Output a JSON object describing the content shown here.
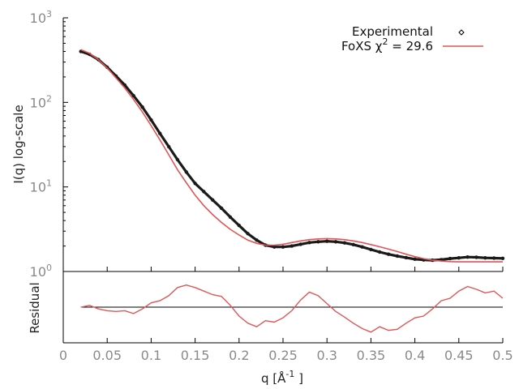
{
  "chart_data": [
    {
      "type": "scatter",
      "ylabel": "I(q) log-scale",
      "yscale": "log",
      "xlim": [
        0,
        0.5
      ],
      "ylim": [
        1,
        1000
      ],
      "y_tick_labels": [
        {
          "base": "10",
          "exp": "0"
        },
        {
          "base": "10",
          "exp": "1"
        },
        {
          "base": "10",
          "exp": "2"
        },
        {
          "base": "10",
          "exp": "3"
        }
      ],
      "legend_position": "top-right",
      "grid": false,
      "series": [
        {
          "name": "Experimental",
          "style": "points",
          "color": "#1a1a1a",
          "x": [
            0.02,
            0.03,
            0.04,
            0.05,
            0.06,
            0.07,
            0.08,
            0.09,
            0.1,
            0.11,
            0.12,
            0.13,
            0.14,
            0.15,
            0.16,
            0.17,
            0.18,
            0.19,
            0.2,
            0.21,
            0.22,
            0.23,
            0.24,
            0.25,
            0.26,
            0.27,
            0.28,
            0.29,
            0.3,
            0.31,
            0.32,
            0.33,
            0.34,
            0.35,
            0.36,
            0.37,
            0.38,
            0.39,
            0.4,
            0.41,
            0.42,
            0.43,
            0.44,
            0.45,
            0.46,
            0.47,
            0.48,
            0.49,
            0.5
          ],
          "y": [
            400,
            370,
            320,
            260,
            205,
            160,
            120,
            88,
            62,
            43,
            30,
            21,
            15,
            11,
            8.8,
            7,
            5.6,
            4.4,
            3.5,
            2.8,
            2.35,
            2.05,
            1.95,
            1.95,
            2.0,
            2.1,
            2.2,
            2.25,
            2.28,
            2.25,
            2.18,
            2.08,
            1.95,
            1.82,
            1.7,
            1.6,
            1.52,
            1.46,
            1.4,
            1.37,
            1.36,
            1.38,
            1.42,
            1.45,
            1.48,
            1.47,
            1.45,
            1.44,
            1.43
          ]
        },
        {
          "name": "FoXS χ",
          "name_superscript": "2",
          "name_suffix": " = 29.6",
          "style": "line",
          "color": "#e05555",
          "x": [
            0.02,
            0.03,
            0.04,
            0.05,
            0.06,
            0.07,
            0.08,
            0.09,
            0.1,
            0.11,
            0.12,
            0.13,
            0.14,
            0.15,
            0.16,
            0.17,
            0.18,
            0.19,
            0.2,
            0.21,
            0.22,
            0.23,
            0.24,
            0.25,
            0.26,
            0.27,
            0.28,
            0.29,
            0.3,
            0.31,
            0.32,
            0.33,
            0.34,
            0.35,
            0.36,
            0.37,
            0.38,
            0.39,
            0.4,
            0.41,
            0.42,
            0.43,
            0.44,
            0.45,
            0.46,
            0.47,
            0.48,
            0.49,
            0.5
          ],
          "y": [
            420,
            380,
            320,
            255,
            195,
            148,
            108,
            77,
            53,
            36,
            24,
            16,
            11.2,
            8.0,
            6.0,
            4.7,
            3.8,
            3.15,
            2.7,
            2.35,
            2.15,
            2.05,
            2.05,
            2.1,
            2.2,
            2.3,
            2.38,
            2.43,
            2.45,
            2.43,
            2.38,
            2.3,
            2.2,
            2.08,
            1.96,
            1.84,
            1.72,
            1.6,
            1.5,
            1.42,
            1.36,
            1.33,
            1.31,
            1.3,
            1.3,
            1.3,
            1.3,
            1.3,
            1.3
          ]
        }
      ]
    },
    {
      "type": "line",
      "ylabel": "Residual",
      "xlabel_prefix": "q [Å",
      "xlabel_superscript": "-1",
      "xlabel_suffix": " ]",
      "xlim": [
        0,
        0.5
      ],
      "ylim": [
        -1,
        1
      ],
      "baseline": 0,
      "x_tick_labels": [
        "0",
        "0.05",
        "0.1",
        "0.15",
        "0.2",
        "0.25",
        "0.3",
        "0.35",
        "0.4",
        "0.45",
        "0.5"
      ],
      "x_ticks": [
        0,
        0.05,
        0.1,
        0.15,
        0.2,
        0.25,
        0.3,
        0.35,
        0.4,
        0.45,
        0.5
      ],
      "series": [
        {
          "color": "#e05555",
          "x": [
            0.02,
            0.03,
            0.04,
            0.05,
            0.06,
            0.07,
            0.08,
            0.09,
            0.1,
            0.11,
            0.12,
            0.13,
            0.14,
            0.15,
            0.16,
            0.17,
            0.18,
            0.19,
            0.2,
            0.21,
            0.22,
            0.23,
            0.24,
            0.25,
            0.26,
            0.27,
            0.28,
            0.29,
            0.3,
            0.31,
            0.32,
            0.33,
            0.34,
            0.35,
            0.36,
            0.37,
            0.38,
            0.39,
            0.4,
            0.41,
            0.42,
            0.43,
            0.44,
            0.45,
            0.46,
            0.47,
            0.48,
            0.49,
            0.5
          ],
          "y": [
            0.0,
            0.05,
            -0.05,
            -0.1,
            -0.12,
            -0.1,
            -0.18,
            -0.05,
            0.12,
            0.18,
            0.32,
            0.55,
            0.62,
            0.55,
            0.45,
            0.35,
            0.3,
            0.05,
            -0.25,
            -0.45,
            -0.55,
            -0.38,
            -0.42,
            -0.3,
            -0.1,
            0.2,
            0.42,
            0.32,
            0.1,
            -0.12,
            -0.28,
            -0.45,
            -0.6,
            -0.7,
            -0.55,
            -0.65,
            -0.62,
            -0.45,
            -0.3,
            -0.25,
            -0.05,
            0.18,
            0.25,
            0.45,
            0.58,
            0.5,
            0.4,
            0.45,
            0.25
          ]
        }
      ]
    }
  ]
}
